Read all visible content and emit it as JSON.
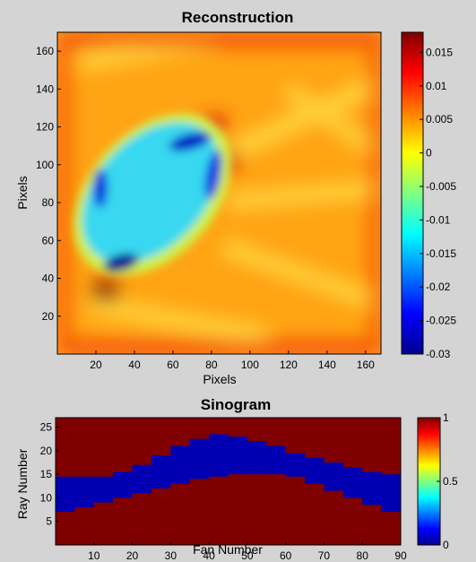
{
  "chart_data": [
    {
      "type": "heatmap",
      "title": "Reconstruction",
      "xlabel": "Pixels",
      "ylabel": "Pixels",
      "xlim": [
        0,
        168
      ],
      "ylim": [
        0,
        170
      ],
      "xticks": [
        20,
        40,
        60,
        80,
        100,
        120,
        140,
        160
      ],
      "yticks": [
        20,
        40,
        60,
        80,
        100,
        120,
        140,
        160
      ],
      "colormap": "jet",
      "colorbar": {
        "min": -0.03,
        "max": 0.018,
        "ticks": [
          0.015,
          0.01,
          0.005,
          0,
          -0.005,
          -0.01,
          -0.015,
          -0.02,
          -0.025,
          -0.03
        ],
        "tick_labels": [
          "0.015",
          "0.01",
          "0.005",
          "0",
          "-0.005",
          "-0.01",
          "-0.015",
          "-0.02",
          "-0.025",
          "-0.03"
        ]
      },
      "background_value": 0.007,
      "features": [
        {
          "kind": "object",
          "center": [
            50,
            80
          ],
          "value": -0.011,
          "description": "elliptical low-value region"
        },
        {
          "kind": "rim",
          "center": [
            66,
            112
          ],
          "value": -0.026
        },
        {
          "kind": "rim",
          "center": [
            40,
            46
          ],
          "value": -0.028
        },
        {
          "kind": "rim",
          "center": [
            22,
            86
          ],
          "value": -0.022
        },
        {
          "kind": "peak",
          "center": [
            24,
            33
          ],
          "value": 0.018
        },
        {
          "kind": "peak",
          "center": [
            90,
            92
          ],
          "value": 0.014
        },
        {
          "kind": "peak",
          "center": [
            84,
            128
          ],
          "value": 0.013
        }
      ]
    },
    {
      "type": "heatmap",
      "title": "Sinogram",
      "xlabel": "Fan Number",
      "ylabel": "Ray Number",
      "xlim": [
        0,
        90
      ],
      "ylim": [
        0,
        27
      ],
      "xticks": [
        10,
        20,
        30,
        40,
        50,
        60,
        70,
        80,
        90
      ],
      "yticks": [
        5,
        10,
        15,
        20,
        25
      ],
      "colormap": "jet",
      "colorbar": {
        "min": 0,
        "max": 1,
        "ticks": [
          1,
          0.5,
          0
        ],
        "tick_labels": [
          "1",
          "0.5",
          "0"
        ]
      },
      "values_description": "binary sinogram: 0 inside the band, 1 outside",
      "band_lower_edge": {
        "x": [
          0,
          5,
          10,
          15,
          20,
          25,
          30,
          35,
          40,
          45,
          50,
          55,
          60,
          65,
          70,
          75,
          80,
          85,
          90
        ],
        "y": [
          7,
          8,
          9,
          10,
          11,
          12,
          13,
          14,
          14.5,
          15,
          15,
          15,
          14.5,
          13,
          11.5,
          10,
          8.5,
          7,
          6
        ]
      },
      "band_upper_edge": {
        "x": [
          0,
          5,
          10,
          15,
          20,
          25,
          30,
          35,
          40,
          45,
          50,
          55,
          60,
          65,
          70,
          75,
          80,
          85,
          90
        ],
        "y": [
          14.5,
          14.5,
          14.5,
          15.5,
          17,
          19,
          21,
          22.5,
          23.5,
          23,
          22,
          21,
          19.5,
          18.5,
          17.5,
          16.5,
          15.5,
          15,
          14
        ]
      }
    }
  ]
}
